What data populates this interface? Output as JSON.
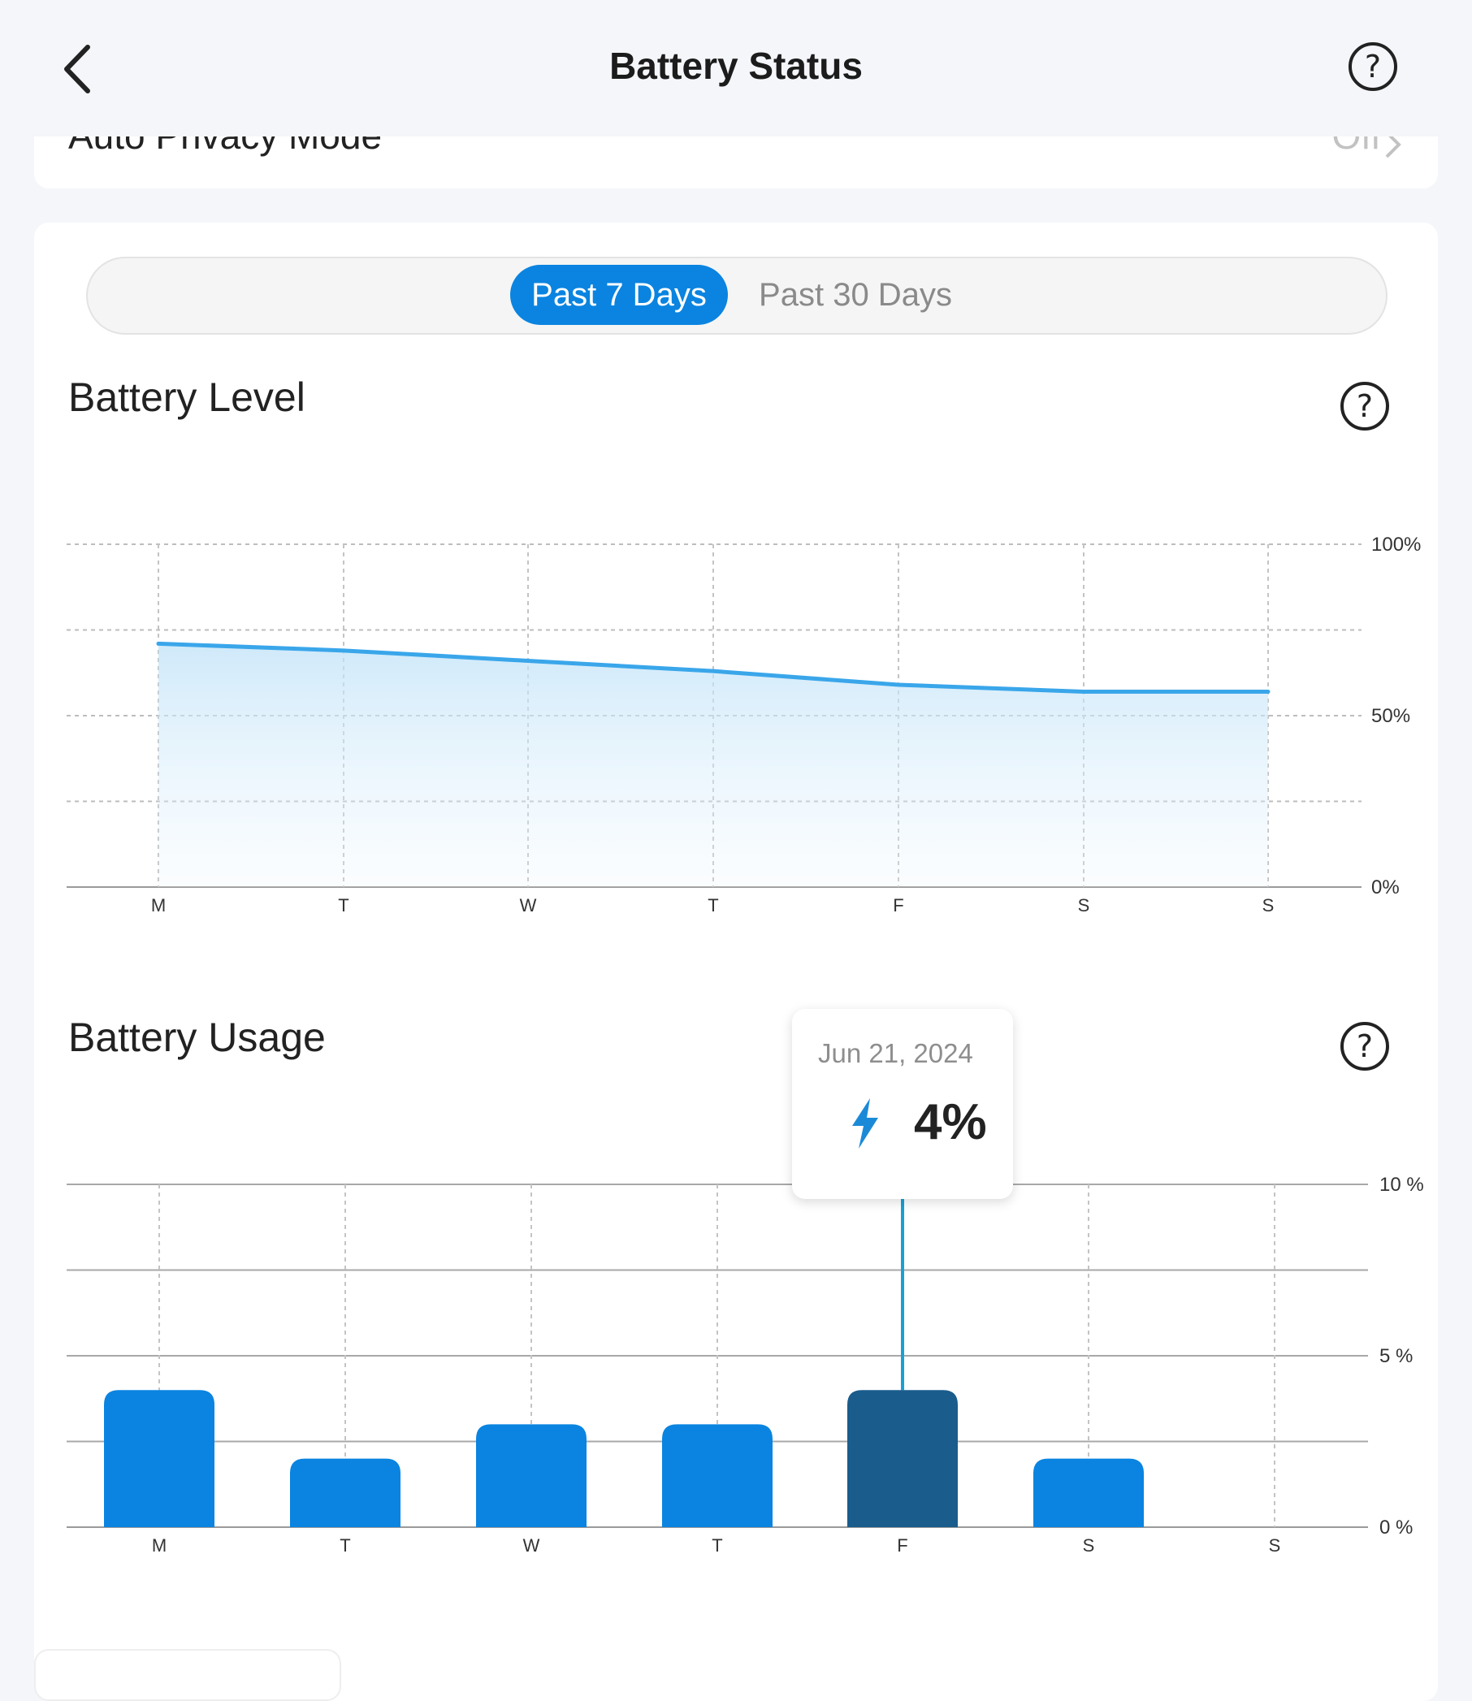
{
  "header": {
    "title": "Battery Status",
    "back_icon": "chevron-left-icon",
    "help_icon": "question-circle-icon"
  },
  "settings_row": {
    "label": "Auto Privacy Mode",
    "value": "Off"
  },
  "range_toggle": {
    "options": [
      "Past 7 Days",
      "Past 30 Days"
    ],
    "selected": "Past 7 Days"
  },
  "battery_level": {
    "title": "Battery Level",
    "chart_data": {
      "type": "area",
      "categories": [
        "M",
        "T",
        "W",
        "T",
        "F",
        "S",
        "S"
      ],
      "values": [
        71,
        69,
        66,
        63,
        59,
        57,
        57
      ],
      "ylim": [
        0,
        100
      ],
      "y_ticks": [
        "100%",
        "50%",
        "0%"
      ],
      "grid": true,
      "line_color": "#3aa6ea"
    }
  },
  "battery_usage": {
    "title": "Battery Usage",
    "chart_data": {
      "type": "bar",
      "categories": [
        "M",
        "T",
        "W",
        "T",
        "F",
        "S",
        "S"
      ],
      "values": [
        4,
        2,
        3,
        3,
        4,
        2,
        0
      ],
      "ylim": [
        0,
        10
      ],
      "y_ticks": [
        "10 %",
        "5 %",
        "0 %"
      ],
      "grid": true,
      "bar_color": "#0a84e0",
      "selected_index": 4,
      "selected_color": "#1a5c8c"
    },
    "tooltip": {
      "date": "Jun 21, 2024",
      "value": "4%",
      "icon": "lightning-bolt-icon"
    }
  }
}
